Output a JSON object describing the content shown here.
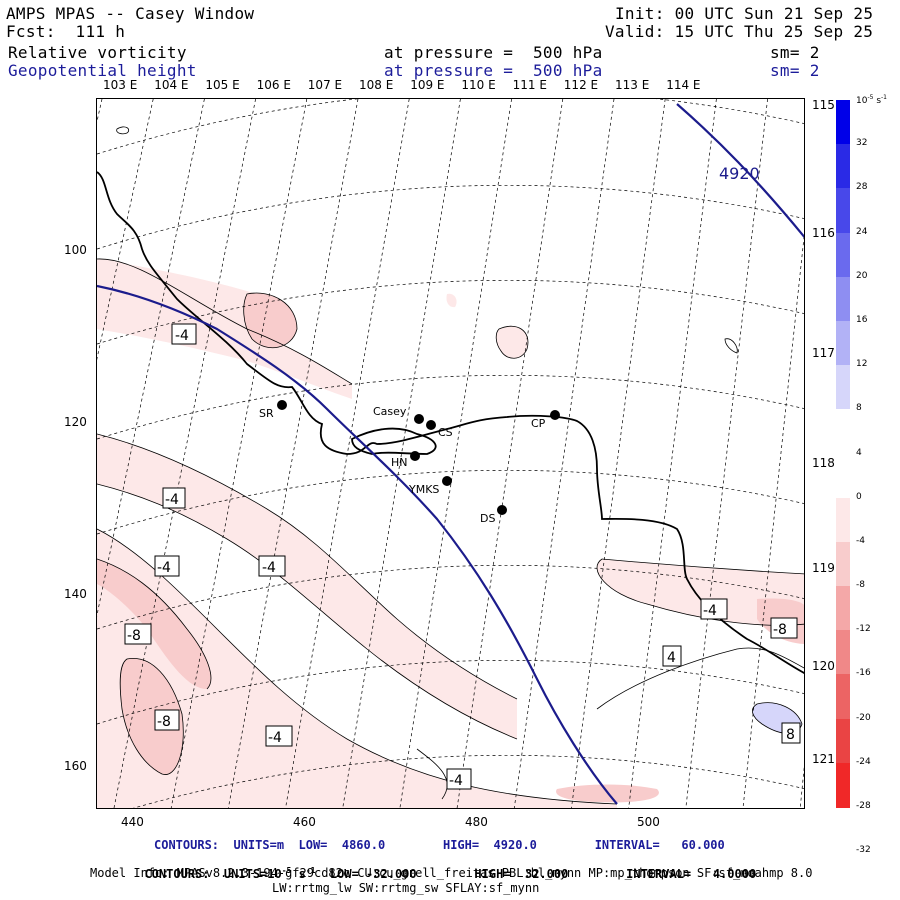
{
  "header": {
    "model": "AMPS MPAS -- Casey Window",
    "fcst": "Fcst:  111 h",
    "init": "Init: 00 UTC Sun 21 Sep 25",
    "valid": "Valid: 15 UTC Thu 25 Sep 25",
    "field1": "Relative vorticity",
    "field1_level": "at pressure =  500 hPa",
    "field1_sm": "sm= 2",
    "field2": "Geopotential height",
    "field2_level": "at pressure =  500 hPa",
    "field2_sm": "sm= 2"
  },
  "top_lon_labels": [
    "103 E",
    "104 E",
    "105 E",
    "106 E",
    "107 E",
    "108 E",
    "109 E",
    "110 E",
    "111 E",
    "112 E",
    "113 E",
    "114 E"
  ],
  "right_lon_labels": [
    "115 E",
    "116 E",
    "117 E",
    "118 E",
    "119 E",
    "120 E",
    "121 E"
  ],
  "y_axis": [
    "100",
    "120",
    "140",
    "160"
  ],
  "x_axis": [
    "440",
    "460",
    "480",
    "500"
  ],
  "stations": [
    {
      "name": "SR"
    },
    {
      "name": "Casey"
    },
    {
      "name": "CS"
    },
    {
      "name": "CP"
    },
    {
      "name": "HN"
    },
    {
      "name": "YMKS"
    },
    {
      "name": "DS"
    }
  ],
  "height_contour_label": "4920",
  "vort_labels": [
    "-4",
    "-4",
    "-4",
    "-4",
    "-8",
    "-8",
    "-4",
    "-4",
    "-4",
    "-8",
    "4",
    "8"
  ],
  "colorbar": {
    "unit": "10",
    "unit_exp": "-5",
    "unit_suffix": "s",
    "unit_suffix_exp": "-1",
    "ticks": [
      "32",
      "28",
      "24",
      "20",
      "16",
      "12",
      "8",
      "4",
      "0",
      "-4",
      "-8",
      "-12",
      "-16",
      "-20",
      "-24",
      "-28",
      "-32"
    ],
    "colors": [
      "#0000e8",
      "#2a2ae6",
      "#4848ea",
      "#6a6aee",
      "#8e8ef2",
      "#b2b2f6",
      "#d6d6fa",
      "#ffffff",
      "#ffffff",
      "#fde8e8",
      "#f8cccc",
      "#f4a8a8",
      "#f08888",
      "#ec6464",
      "#ea4444",
      "#f02828"
    ]
  },
  "footer": {
    "line1": "CONTOURS:  UNITS=m  LOW=  4860.0        HIGH=  4920.0        INTERVAL=   60.000",
    "line2_a": "CONTOURS:  UNITS=10",
    "line2_exp1": "-5",
    "line2_b": " s",
    "line2_exp2": "-1",
    "line2_c": "  LOW= -32.000        HIGH=  32.000        INTERVAL=   4.0000",
    "line3": "Model Info: MPASv8.2.3-194-gf29cd82c CU:cu_grell_freitas PBL:bl_mynn MP:mp_thompson SF:sf_noahmp 8.0",
    "line4": "LW:rrtmg_lw SW:rrtmg_sw SFLAY:sf_mynn"
  }
}
